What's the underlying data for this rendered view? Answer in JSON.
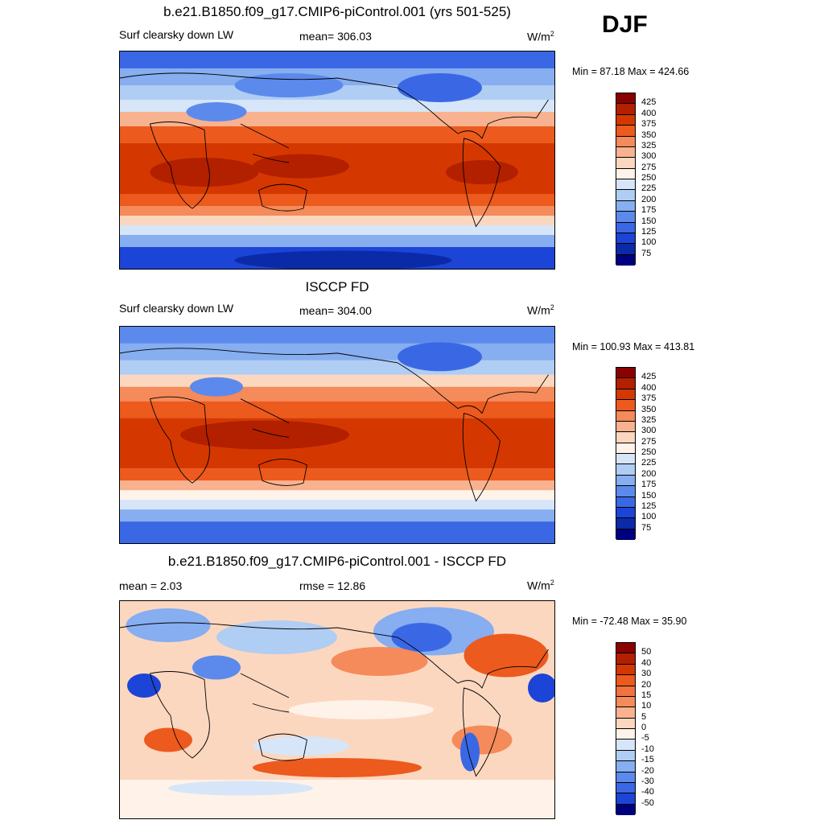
{
  "season": "DJF",
  "panels": [
    {
      "title": "b.e21.B1850.f09_g17.CMIP6-piControl.001 (yrs 501-525)",
      "left_label": "Surf clearsky down LW",
      "center_label": "mean= 306.03",
      "units_base": "W/m",
      "units_exp": "2",
      "minmax": "Min =  87.18 Max = 424.66",
      "colorbar_labels": [
        "425",
        "400",
        "375",
        "350",
        "325",
        "300",
        "275",
        "250",
        "225",
        "200",
        "175",
        "150",
        "125",
        "100",
        "75"
      ],
      "colors": [
        "#8b0000",
        "#b22000",
        "#d43800",
        "#ec5a1e",
        "#f58a5a",
        "#f9b28f",
        "#fcd7bf",
        "#fff2e8",
        "#d6e6f8",
        "#b0cdf3",
        "#86aef0",
        "#5c8aec",
        "#3a68e5",
        "#1c44d6",
        "#0b2aa8",
        "#00007e"
      ]
    },
    {
      "title": "ISCCP FD",
      "left_label": "Surf clearsky down LW",
      "center_label": "mean= 304.00",
      "units_base": "W/m",
      "units_exp": "2",
      "minmax": "Min = 100.93 Max = 413.81",
      "colorbar_labels": [
        "425",
        "400",
        "375",
        "350",
        "325",
        "300",
        "275",
        "250",
        "225",
        "200",
        "175",
        "150",
        "125",
        "100",
        "75"
      ],
      "colors": [
        "#8b0000",
        "#b22000",
        "#d43800",
        "#ec5a1e",
        "#f58a5a",
        "#f9b28f",
        "#fcd7bf",
        "#fff2e8",
        "#d6e6f8",
        "#b0cdf3",
        "#86aef0",
        "#5c8aec",
        "#3a68e5",
        "#1c44d6",
        "#0b2aa8",
        "#00007e"
      ]
    },
    {
      "title": "b.e21.B1850.f09_g17.CMIP6-piControl.001 - ISCCP FD",
      "left_label": "mean =   2.03",
      "center_label": "rmse =  12.86",
      "units_base": "W/m",
      "units_exp": "2",
      "minmax": "Min = -72.48 Max =  35.90",
      "colorbar_labels": [
        "50",
        "40",
        "30",
        "20",
        "15",
        "10",
        "5",
        "0",
        "-5",
        "-10",
        "-15",
        "-20",
        "-30",
        "-40",
        "-50"
      ],
      "colors": [
        "#8b0000",
        "#b22000",
        "#d43800",
        "#ec5a1e",
        "#f07240",
        "#f58a5a",
        "#f9b28f",
        "#fcd7bf",
        "#fff2e8",
        "#d6e6f8",
        "#b0cdf3",
        "#86aef0",
        "#5c8aec",
        "#3a68e5",
        "#1c44d6",
        "#00007e"
      ]
    }
  ]
}
